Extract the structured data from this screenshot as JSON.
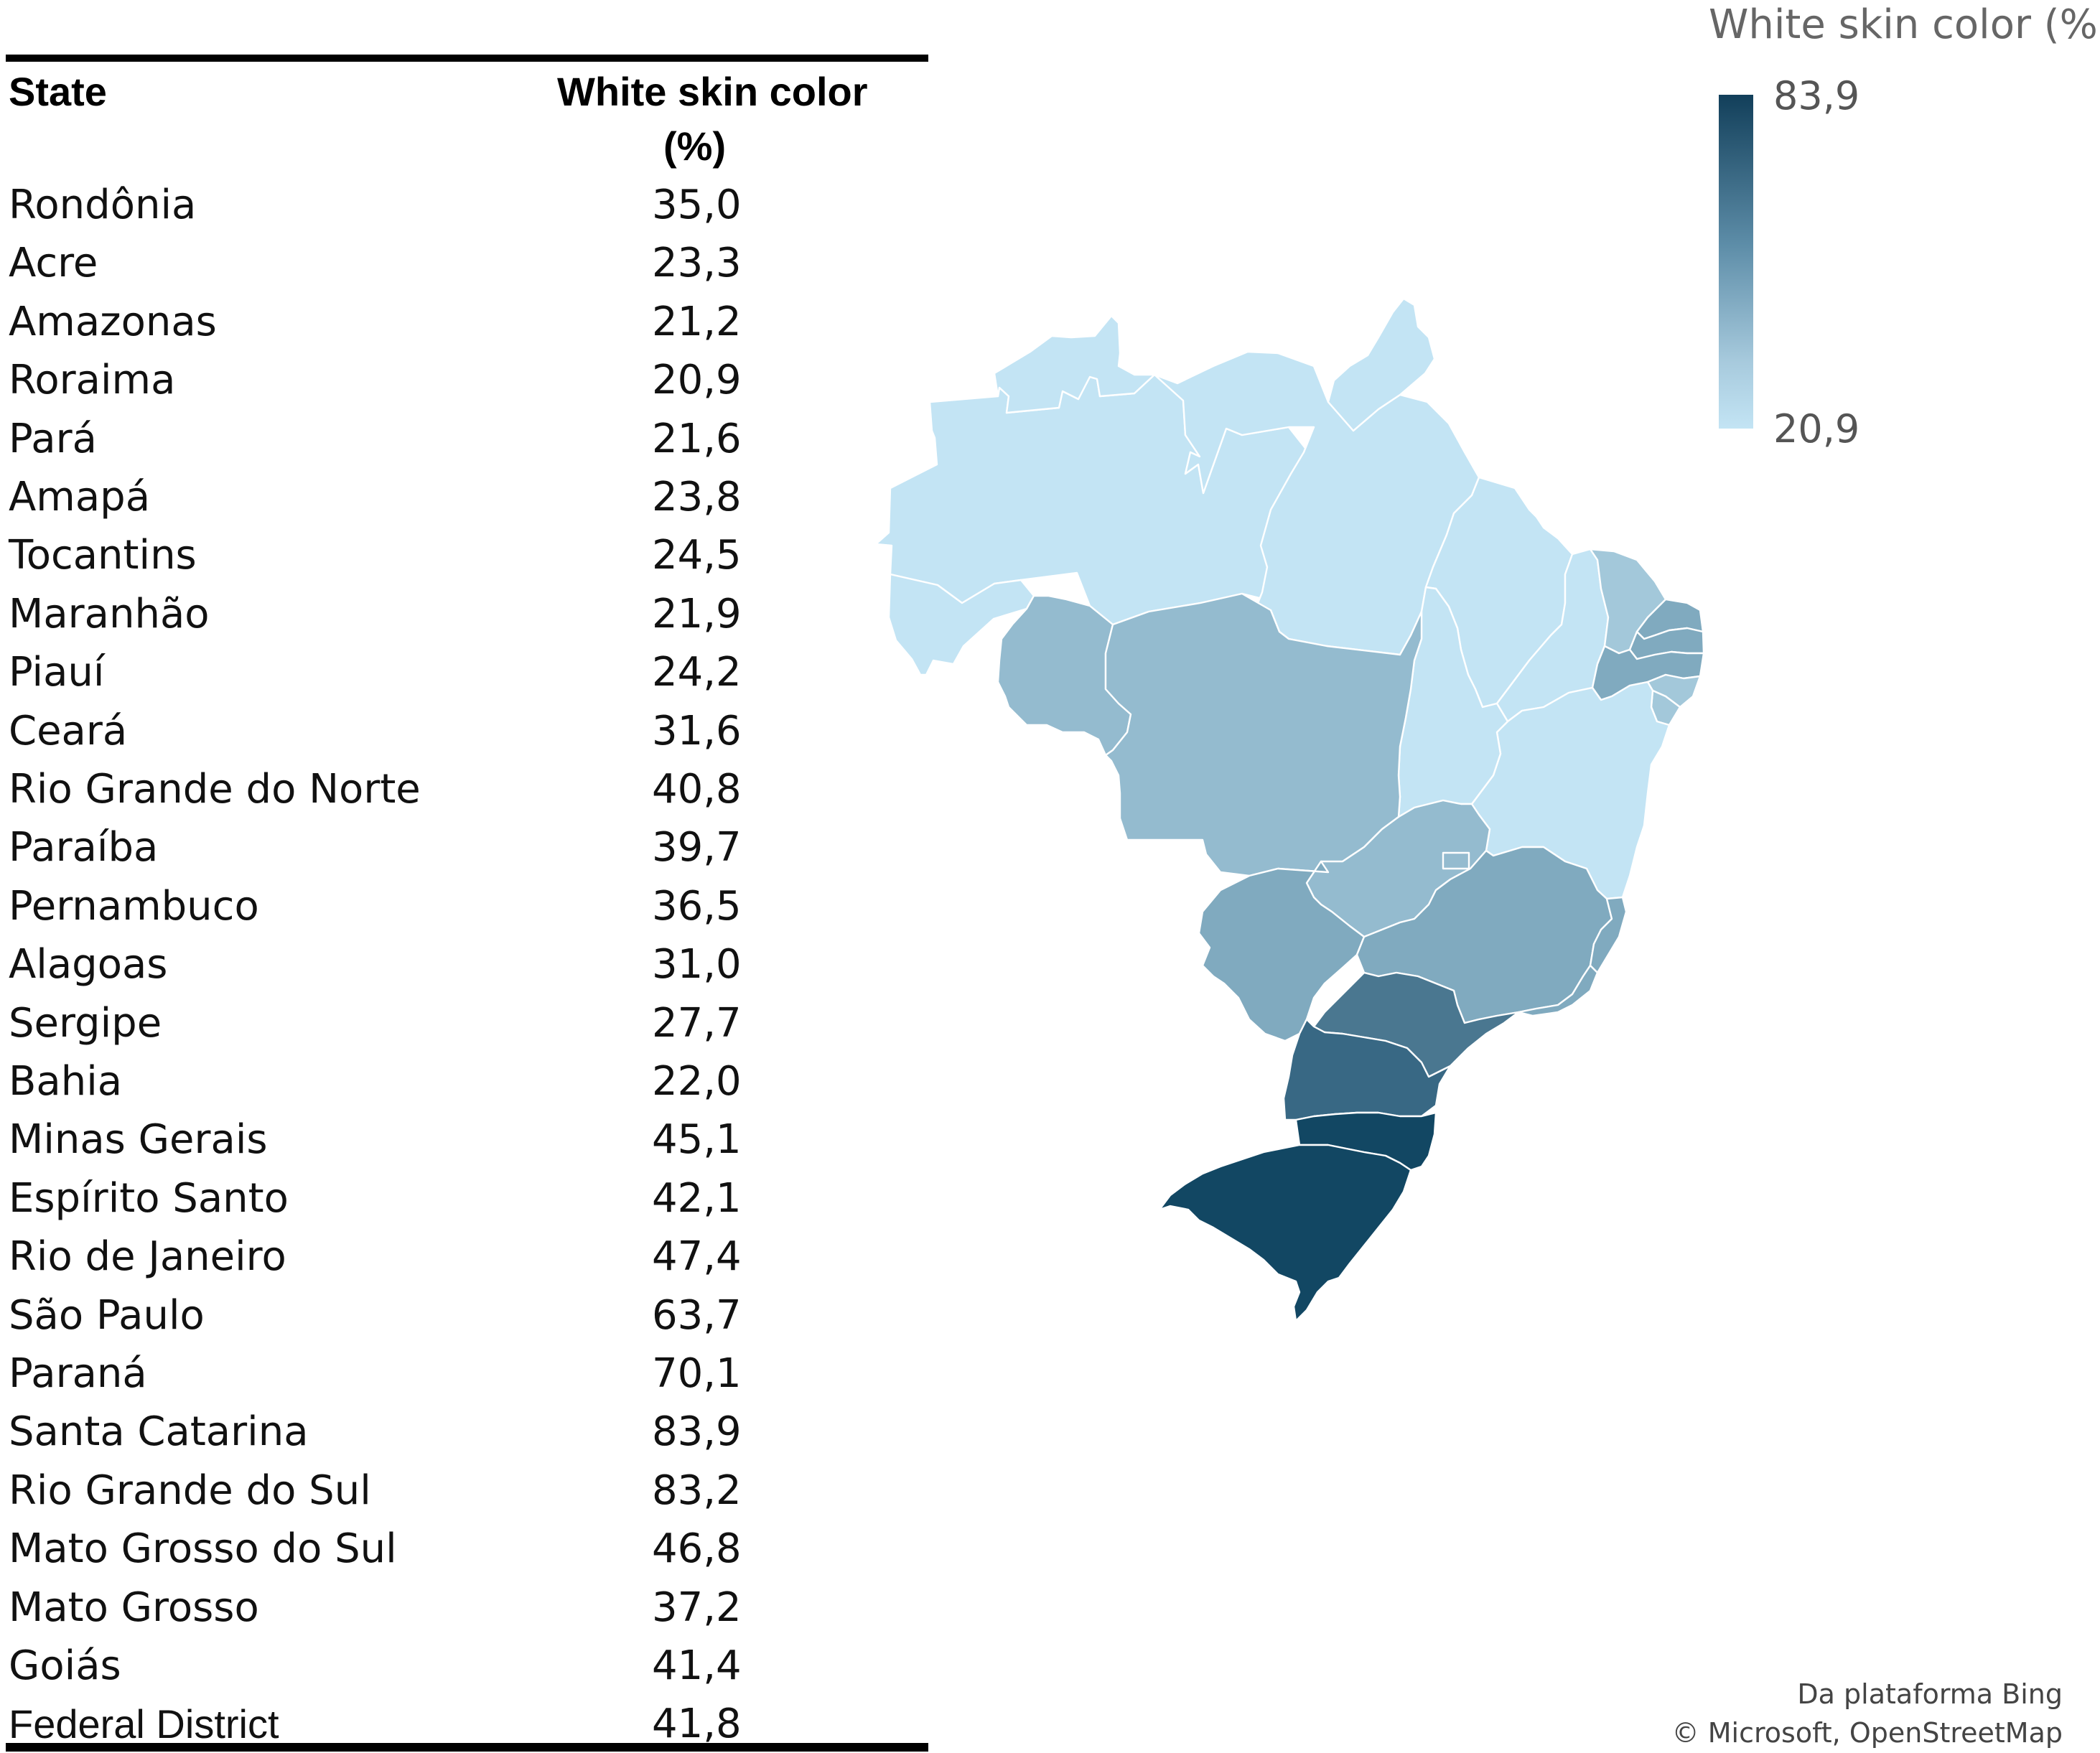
{
  "table": {
    "header_state": "State",
    "header_value": "White skin color",
    "header_unit": "(%)",
    "rows": [
      {
        "state": "Rondônia",
        "value": "35,0"
      },
      {
        "state": "Acre",
        "value": "23,3"
      },
      {
        "state": "Amazonas",
        "value": "21,2"
      },
      {
        "state": "Roraima",
        "value": "20,9"
      },
      {
        "state": "Pará",
        "value": "21,6"
      },
      {
        "state": "Amapá",
        "value": "23,8"
      },
      {
        "state": "Tocantins",
        "value": "24,5"
      },
      {
        "state": "Maranhão",
        "value": "21,9"
      },
      {
        "state": "Piauí",
        "value": "24,2"
      },
      {
        "state": "Ceará",
        "value": "31,6"
      },
      {
        "state": "Rio Grande do Norte",
        "value": "40,8"
      },
      {
        "state": "Paraíba",
        "value": "39,7"
      },
      {
        "state": "Pernambuco",
        "value": "36,5"
      },
      {
        "state": "Alagoas",
        "value": "31,0"
      },
      {
        "state": "Sergipe",
        "value": "27,7"
      },
      {
        "state": "Bahia",
        "value": "22,0"
      },
      {
        "state": "Minas Gerais",
        "value": "45,1"
      },
      {
        "state": "Espírito Santo",
        "value": "42,1"
      },
      {
        "state": "Rio de Janeiro",
        "value": "47,4"
      },
      {
        "state": "São Paulo",
        "value": "63,7"
      },
      {
        "state": "Paraná",
        "value": "70,1"
      },
      {
        "state": "Santa Catarina",
        "value": "83,9"
      },
      {
        "state": "Rio Grande do Sul",
        "value": "83,2"
      },
      {
        "state": "Mato Grosso do Sul",
        "value": "46,8"
      },
      {
        "state": "Mato Grosso",
        "value": "37,2"
      },
      {
        "state": "Goiás",
        "value": "41,4"
      },
      {
        "state": "Federal District",
        "value": "41,8"
      }
    ]
  },
  "legend": {
    "title": "White skin color (%)",
    "max": "83,9",
    "min": "20,9",
    "colors": {
      "low": "#c3e4f4",
      "high": "#123f5a"
    }
  },
  "map_colors": {
    "very_light": "#c3e4f4",
    "light_mid": "#a3c8da",
    "mid": "#94bbcf",
    "mid_dark": "#80aabf",
    "dark": "#4a7790",
    "darker": "#386884",
    "darkest": "#124763"
  },
  "attribution": {
    "line1": "Da plataforma Bing",
    "line2": "© Microsoft, OpenStreetMap"
  }
}
